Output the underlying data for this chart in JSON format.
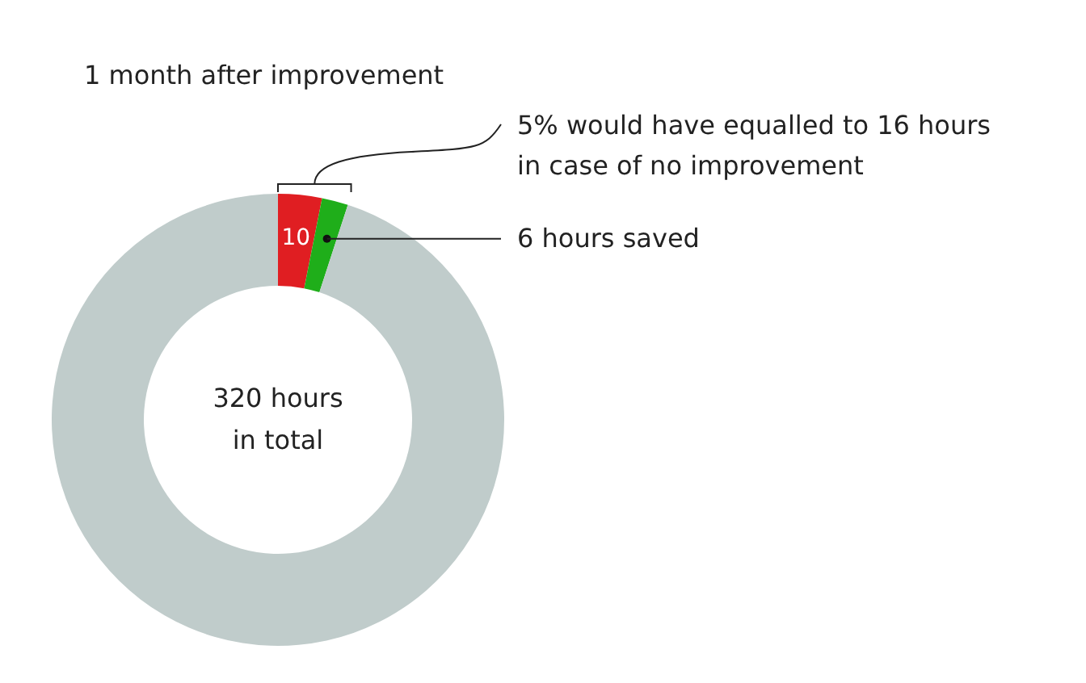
{
  "chart_data": {
    "type": "donut",
    "title": "1 month after improvement",
    "categories": [
      null,
      null,
      null
    ],
    "values": [
      10,
      6,
      304
    ],
    "colors": [
      "#e01e22",
      "#1fae1a",
      "#c0cccb"
    ],
    "value_labels": [
      "10",
      null,
      null
    ],
    "annotations": [
      "5% would have equalled to 16 hours\nin case of no improvement",
      "6 hours saved",
      "320 hours\nin total"
    ]
  }
}
